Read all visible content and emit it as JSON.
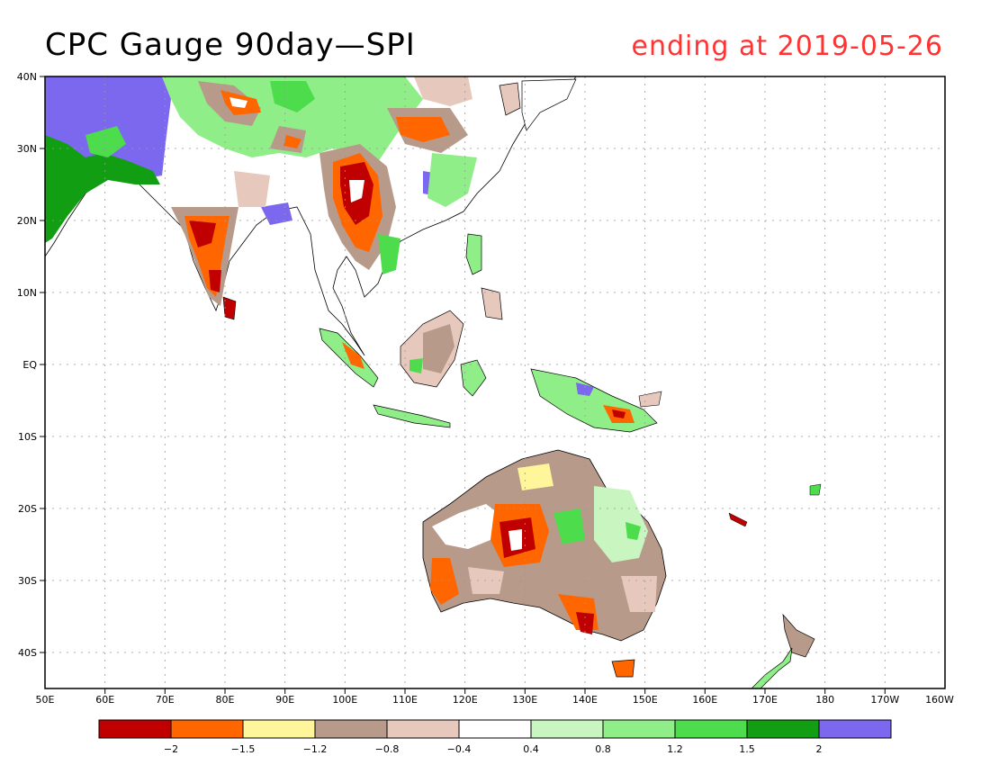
{
  "title": "CPC Gauge 90day—SPI",
  "subtitle": "ending at 2019-05-26",
  "lat_labels": [
    "40N",
    "30N",
    "20N",
    "10N",
    "EQ",
    "10S",
    "20S",
    "30S",
    "40S"
  ],
  "lon_labels": [
    "50E",
    "60E",
    "70E",
    "80E",
    "90E",
    "100E",
    "110E",
    "120E",
    "130E",
    "140E",
    "150E",
    "160E",
    "170E",
    "180",
    "170W",
    "160W"
  ],
  "legend": {
    "colors": [
      "#c00000",
      "#ff6600",
      "#fff59a",
      "#b89a8a",
      "#e6c8bc",
      "#ffffff",
      "#c8f5c0",
      "#90ee88",
      "#4cdc4c",
      "#129e12",
      "#7b68ee"
    ],
    "labels": [
      "−2",
      "−1.5",
      "−1.2",
      "−0.8",
      "−0.4",
      "0.4",
      "0.8",
      "1.2",
      "1.5",
      "2"
    ]
  },
  "colors": {
    "title": "#000000",
    "subtitle": "#ff3333",
    "grid": "#999999"
  }
}
